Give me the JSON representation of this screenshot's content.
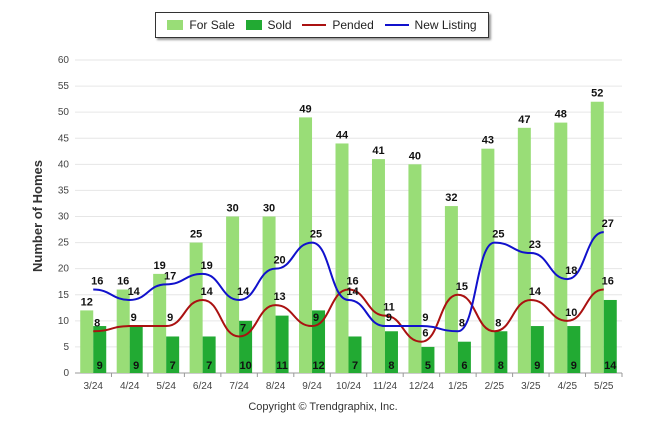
{
  "chart_data": {
    "type": "bar",
    "categories": [
      "3/24",
      "4/24",
      "5/24",
      "6/24",
      "7/24",
      "8/24",
      "9/24",
      "10/24",
      "11/24",
      "12/24",
      "1/25",
      "2/25",
      "3/25",
      "4/25",
      "5/25"
    ],
    "series": [
      {
        "name": "For Sale",
        "kind": "bar",
        "color": "#99dd77",
        "values": [
          12,
          16,
          19,
          25,
          30,
          30,
          49,
          44,
          41,
          40,
          32,
          43,
          47,
          48,
          52
        ]
      },
      {
        "name": "Sold",
        "kind": "bar",
        "color": "#22aa33",
        "values": [
          9,
          9,
          7,
          7,
          10,
          11,
          12,
          7,
          8,
          5,
          6,
          8,
          9,
          9,
          14
        ]
      },
      {
        "name": "Pended",
        "kind": "line",
        "color": "#aa1111",
        "values": [
          8,
          9,
          9,
          14,
          7,
          13,
          9,
          16,
          11,
          6,
          15,
          8,
          14,
          10,
          16
        ]
      },
      {
        "name": "New Listing",
        "kind": "line",
        "color": "#1111cc",
        "values": [
          16,
          14,
          17,
          19,
          14,
          20,
          25,
          14,
          9,
          9,
          8,
          25,
          23,
          18,
          27
        ]
      }
    ],
    "ylabel": "Number of Homes",
    "ylim": [
      0,
      60
    ],
    "yticks": [
      0,
      5,
      10,
      15,
      20,
      25,
      30,
      35,
      40,
      45,
      50,
      55,
      60
    ],
    "grid": true,
    "legend_position": "top-center"
  },
  "footer": {
    "copyright": "Copyright © Trendgraphix, Inc."
  }
}
